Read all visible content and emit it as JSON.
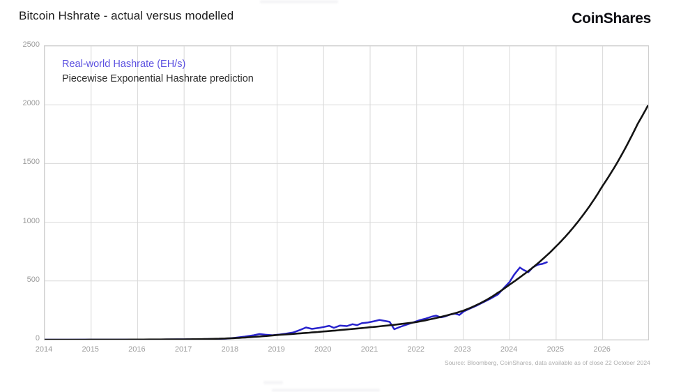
{
  "page": {
    "title": "Bitcoin Hshrate - actual versus modelled",
    "logo": "CoinShares",
    "source": "Source: Bloomberg, CoinShares, data available as of close 22 October 2024"
  },
  "colors": {
    "grid": "#d9d9d9",
    "plot_border": "#cfcfcf",
    "tick_label": "#9c9c9c",
    "title_text": "#1c1c1c",
    "source_text": "#ababab",
    "actual_line": "#2823cd",
    "actual_legend_text": "#5b50e0",
    "model_line": "#141414",
    "model_legend_text": "#2e2e2e"
  },
  "chart_data": {
    "type": "line",
    "title": "Bitcoin Hshrate - actual versus modelled",
    "xlabel": "",
    "ylabel": "",
    "xlim": [
      2014,
      2026.98
    ],
    "ylim": [
      0,
      2500
    ],
    "x_ticks": [
      2014,
      2015,
      2016,
      2017,
      2018,
      2019,
      2020,
      2021,
      2022,
      2023,
      2024,
      2025,
      2026
    ],
    "y_ticks": [
      0,
      500,
      1000,
      1500,
      2000,
      2500
    ],
    "grid": true,
    "legend_position": "top-left-inside",
    "series": [
      {
        "name": "Real-world Hashrate (EH/s)",
        "color": "#2823cd",
        "legend_color": "#5b50e0",
        "width": 2.5,
        "interp": "linear",
        "x": [
          2014,
          2014.5,
          2015,
          2015.5,
          2016,
          2016.5,
          2017,
          2017.4,
          2017.7,
          2017.9,
          2018.1,
          2018.3,
          2018.5,
          2018.62,
          2018.75,
          2018.9,
          2019.05,
          2019.2,
          2019.35,
          2019.5,
          2019.62,
          2019.75,
          2019.88,
          2020.0,
          2020.12,
          2020.22,
          2020.35,
          2020.5,
          2020.62,
          2020.72,
          2020.82,
          2020.95,
          2021.08,
          2021.2,
          2021.3,
          2021.42,
          2021.52,
          2021.65,
          2021.8,
          2021.95,
          2022.08,
          2022.2,
          2022.32,
          2022.42,
          2022.52,
          2022.62,
          2022.72,
          2022.82,
          2022.92,
          2023.02,
          2023.15,
          2023.3,
          2023.45,
          2023.6,
          2023.75,
          2023.88,
          2024.0,
          2024.1,
          2024.22,
          2024.3,
          2024.4,
          2024.5,
          2024.6,
          2024.7,
          2024.8
        ],
        "y": [
          0.1,
          0.2,
          0.35,
          0.5,
          1.3,
          1.8,
          2.8,
          4.5,
          6.5,
          9,
          16,
          26,
          38,
          48,
          42,
          38,
          44,
          52,
          62,
          84,
          104,
          92,
          99,
          108,
          118,
          101,
          120,
          116,
          132,
          124,
          140,
          146,
          157,
          168,
          161,
          152,
          89,
          110,
          130,
          150,
          168,
          180,
          196,
          205,
          190,
          199,
          214,
          222,
          211,
          242,
          266,
          292,
          322,
          352,
          386,
          442,
          492,
          556,
          614,
          594,
          574,
          616,
          638,
          645,
          660
        ]
      },
      {
        "name": "Piecewise Exponential Hashrate prediction",
        "color": "#141414",
        "legend_color": "#2e2e2e",
        "width": 2.6,
        "interp": "log",
        "x": [
          2014,
          2015,
          2016,
          2017,
          2017.5,
          2018,
          2018.5,
          2019,
          2019.5,
          2020,
          2020.5,
          2021,
          2021.5,
          2022,
          2022.5,
          2023,
          2023.25,
          2023.5,
          2023.75,
          2024,
          2024.25,
          2024.5,
          2024.75,
          2025,
          2025.25,
          2025.5,
          2025.75,
          2026,
          2026.25,
          2026.5,
          2026.75,
          2026.97
        ],
        "y": [
          0.05,
          0.3,
          1.2,
          3,
          6,
          12,
          24,
          40,
          54,
          70,
          87,
          106,
          126,
          150,
          192,
          246,
          288,
          338,
          400,
          469,
          540,
          615,
          700,
          795,
          900,
          1020,
          1155,
          1310,
          1465,
          1640,
          1835,
          1990
        ]
      }
    ]
  }
}
